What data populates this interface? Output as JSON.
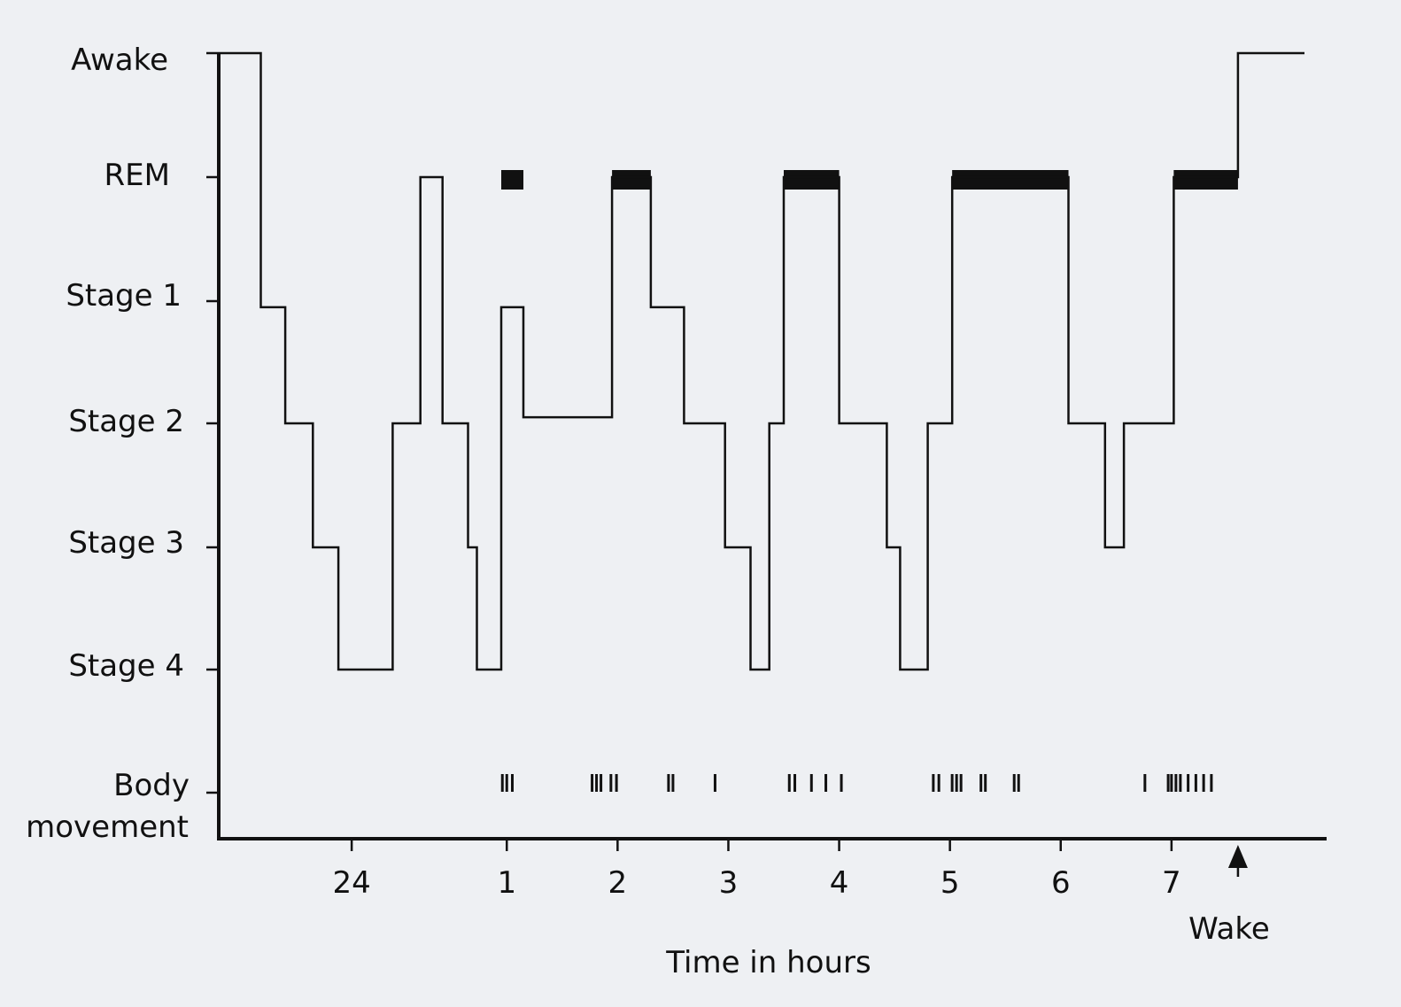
{
  "chart_data": {
    "type": "line",
    "title": "",
    "xlabel": "Time in hours",
    "ylabel": "",
    "y_levels": [
      "Awake",
      "REM",
      "Stage 1",
      "Stage 2",
      "Stage 3",
      "Stage 4"
    ],
    "movement_row_label": [
      "Body",
      "movement"
    ],
    "x_ticks": [
      {
        "t": -0.4,
        "label": "24"
      },
      {
        "t": 1,
        "label": "1"
      },
      {
        "t": 2,
        "label": "2"
      },
      {
        "t": 3,
        "label": "3"
      },
      {
        "t": 4,
        "label": "4"
      },
      {
        "t": 5,
        "label": "5"
      },
      {
        "t": 6,
        "label": "6"
      },
      {
        "t": 7,
        "label": "7"
      }
    ],
    "xlim": [
      -1.6,
      8.4
    ],
    "wake_marker": {
      "t": 7.6,
      "label": "Wake"
    },
    "hypnogram": [
      {
        "t": -1.6,
        "level": 0
      },
      {
        "t": -1.22,
        "level": 2.05
      },
      {
        "t": -1.0,
        "level": 3.0
      },
      {
        "t": -0.75,
        "level": 4.0
      },
      {
        "t": -0.52,
        "level": 5.0
      },
      {
        "t": -0.03,
        "level": 3.0
      },
      {
        "t": 0.22,
        "level": 1.0
      },
      {
        "t": 0.42,
        "level": 3.0
      },
      {
        "t": 0.65,
        "level": 4.0
      },
      {
        "t": 0.73,
        "level": 5.0
      },
      {
        "t": 0.95,
        "level": 2.05
      },
      {
        "t": 1.15,
        "level": 2.95
      },
      {
        "t": 1.95,
        "level": 1.0
      },
      {
        "t": 2.3,
        "level": 2.05
      },
      {
        "t": 2.6,
        "level": 3.0
      },
      {
        "t": 2.97,
        "level": 4.0
      },
      {
        "t": 3.2,
        "level": 5.0
      },
      {
        "t": 3.37,
        "level": 3.0
      },
      {
        "t": 3.5,
        "level": 1.0
      },
      {
        "t": 4.0,
        "level": 3.0
      },
      {
        "t": 4.43,
        "level": 4.0
      },
      {
        "t": 4.55,
        "level": 5.0
      },
      {
        "t": 4.8,
        "level": 3.0
      },
      {
        "t": 5.02,
        "level": 1.0
      },
      {
        "t": 6.07,
        "level": 3.0
      },
      {
        "t": 6.4,
        "level": 4.0
      },
      {
        "t": 6.57,
        "level": 3.0
      },
      {
        "t": 7.02,
        "level": 1.0
      },
      {
        "t": 7.6,
        "level": 0
      },
      {
        "t": 8.2,
        "level": 0
      }
    ],
    "rem_periods": [
      {
        "start": 0.95,
        "end": 1.15
      },
      {
        "start": 1.95,
        "end": 2.3
      },
      {
        "start": 3.5,
        "end": 4.0
      },
      {
        "start": 5.02,
        "end": 6.07
      },
      {
        "start": 7.02,
        "end": 7.6
      }
    ],
    "body_movements": [
      0.96,
      1.0,
      1.05,
      1.77,
      1.81,
      1.85,
      1.94,
      1.99,
      2.46,
      2.5,
      2.88,
      3.55,
      3.6,
      3.75,
      3.88,
      4.02,
      4.85,
      4.9,
      5.02,
      5.06,
      5.1,
      5.28,
      5.32,
      5.58,
      5.62,
      6.76,
      6.97,
      7.0,
      7.04,
      7.08,
      7.15,
      7.22,
      7.29,
      7.36
    ],
    "grid": false,
    "legend": "none"
  }
}
